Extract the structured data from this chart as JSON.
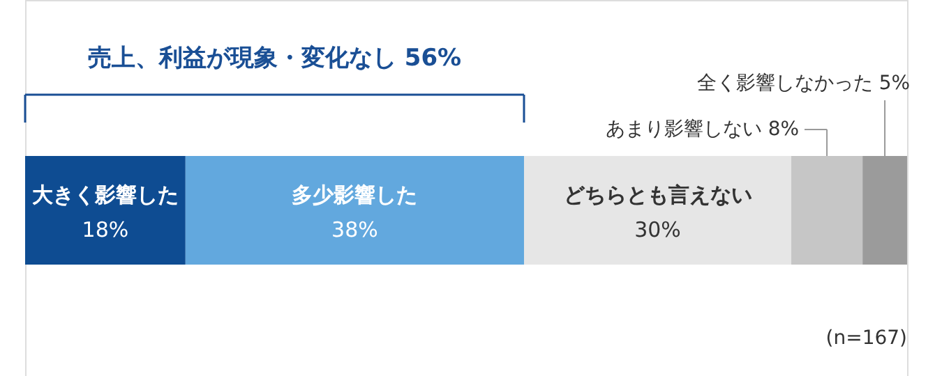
{
  "chart_data": {
    "type": "bar",
    "orientation": "horizontal",
    "stacked": true,
    "categories": [
      null
    ],
    "series": [
      {
        "name": "大きく影響した",
        "color": "#0e4c92",
        "values": [
          18
        ],
        "value_labels": [
          "18%"
        ]
      },
      {
        "name": "多少影響した",
        "color": "#62a8de",
        "values": [
          38
        ],
        "value_labels": [
          "38%"
        ]
      },
      {
        "name": "どちらとも言えない",
        "color": "#e6e6e6",
        "values": [
          30
        ],
        "value_labels": [
          "30%"
        ]
      },
      {
        "name": "あまり影響しない",
        "color": "#c6c6c6",
        "values": [
          8
        ],
        "value_labels": [
          "8%"
        ]
      },
      {
        "name": "全く影響しなかった",
        "color": "#9b9b9b",
        "values": [
          5
        ],
        "value_labels": [
          "5%"
        ]
      }
    ],
    "annotations": [
      "売上、利益が現象・変化なし 56%",
      "(n=167)"
    ]
  }
}
